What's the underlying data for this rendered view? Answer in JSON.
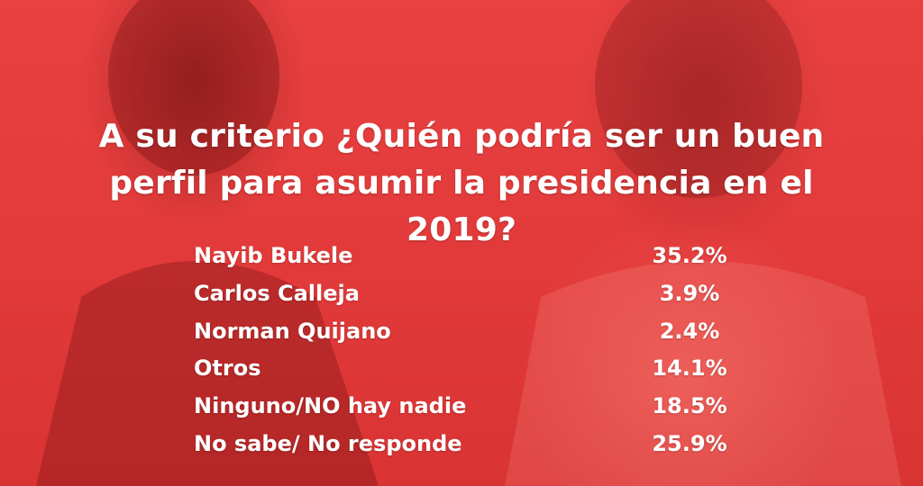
{
  "colors": {
    "background": "#e53d3d",
    "text": "#ffffff"
  },
  "chart_data": {
    "type": "table",
    "title": "A su criterio ¿Quién podría ser un buen perfil para asumir la presidencia en el 2019?",
    "categories": [
      "Nayib Bukele",
      "Carlos Calleja",
      "Norman Quijano",
      "Otros",
      "Ninguno/NO hay nadie",
      "No sabe/ No responde"
    ],
    "values": [
      35.2,
      3.9,
      2.4,
      14.1,
      18.5,
      25.9
    ],
    "value_labels": [
      "35.2%",
      "3.9%",
      "2.4%",
      "14.1%",
      "18.5%",
      "25.9%"
    ],
    "unit": "%"
  }
}
